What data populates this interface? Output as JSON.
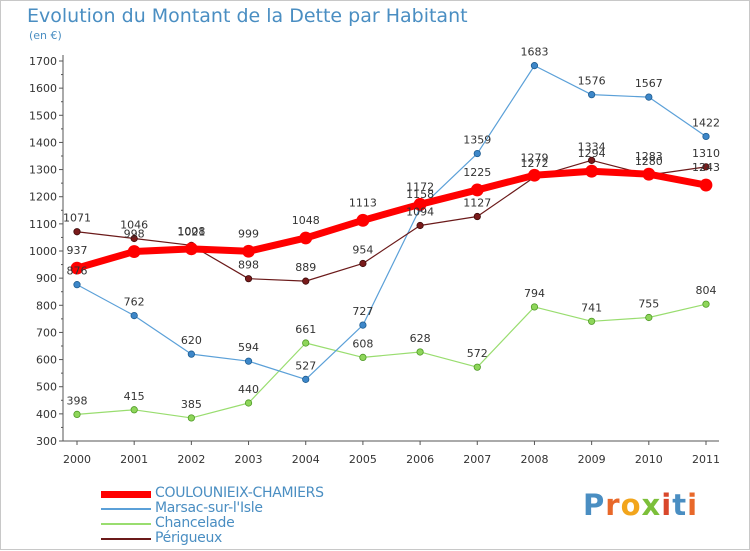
{
  "title": "Evolution du Montant de la Dette par Habitant",
  "unit_label": "(en €)",
  "logo_text": "Proxiti",
  "chart_data": {
    "type": "line",
    "title": "Evolution du Montant de la Dette par Habitant",
    "x": [
      "2000",
      "2001",
      "2002",
      "2003",
      "2004",
      "2005",
      "2006",
      "2007",
      "2008",
      "2009",
      "2010",
      "2011"
    ],
    "ylim": [
      300,
      1700
    ],
    "yticks": [
      300,
      400,
      500,
      600,
      700,
      800,
      900,
      1000,
      1100,
      1200,
      1300,
      1400,
      1500,
      1600,
      1700
    ],
    "grid": false,
    "legend_position": "bottom-left",
    "series": [
      {
        "name": "COULOUNIEIX-CHAMIERS",
        "color": "#ff0000",
        "values": [
          937,
          998,
          1008,
          999,
          1048,
          1113,
          1172,
          1225,
          1279,
          1294,
          1283,
          1243
        ]
      },
      {
        "name": "Marsac-sur-l'Isle",
        "color": "#5ba0d8",
        "values": [
          876,
          762,
          620,
          594,
          527,
          727,
          1158,
          1359,
          1683,
          1576,
          1567,
          1422
        ]
      },
      {
        "name": "Chancelade",
        "color": "#99dd6f",
        "values": [
          398,
          415,
          385,
          440,
          661,
          608,
          628,
          572,
          794,
          741,
          755,
          804
        ]
      },
      {
        "name": "Périgueux",
        "color": "#6b1a1a",
        "values": [
          1071,
          1046,
          1021,
          898,
          889,
          954,
          1094,
          1127,
          1272,
          1334,
          1280,
          1310
        ]
      }
    ]
  }
}
